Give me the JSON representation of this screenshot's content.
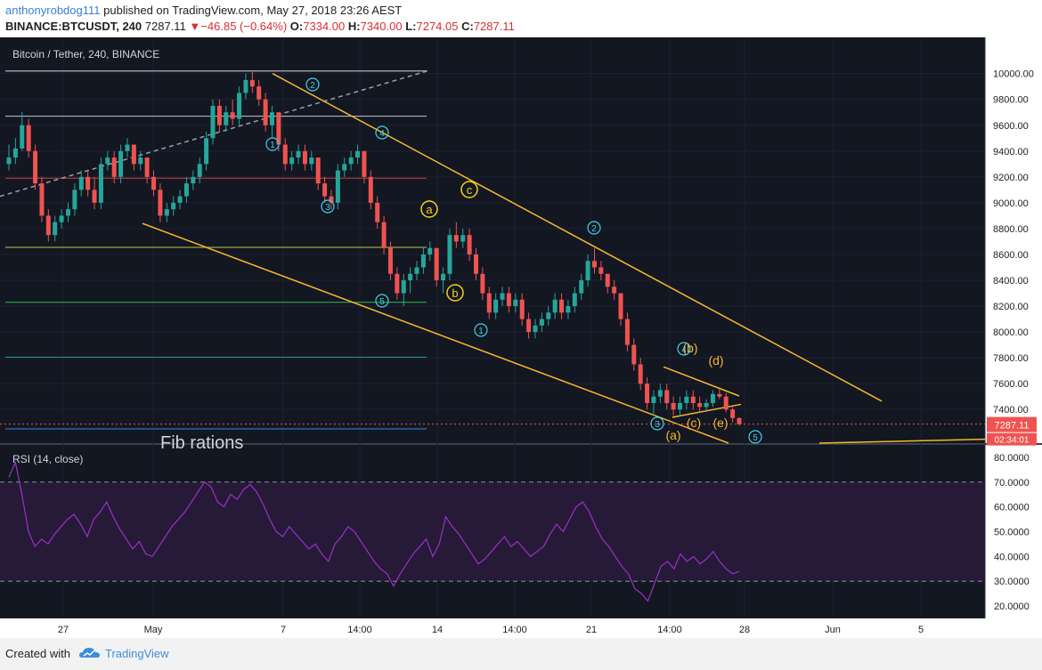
{
  "header": {
    "user": "anthonyrobdog111",
    "published": "published on TradingView.com, May 27, 2018 23:26 AEST",
    "symbol": "BINANCE:BTCUSDT, 240",
    "last": "7287.11",
    "change": "−46.85 (−0.64%)",
    "o_label": "O:",
    "o": "7334.00",
    "h_label": "H:",
    "h": "7340.00",
    "l_label": "L:",
    "l": "7274.05",
    "c_label": "C:",
    "c": "7287.11"
  },
  "footer": {
    "created_with": "Created with",
    "brand": "TradingView"
  },
  "colors": {
    "bg": "#131722",
    "up": "#26a69a",
    "down": "#ef5350",
    "trend": "#f5b82e",
    "wave": "#3fd0e8",
    "abc": "#f2d21b",
    "rsi": "#9b30c8"
  },
  "chart_data": {
    "type": "candlestick",
    "title": "Bitcoin / Tether, 240, BINANCE",
    "yticks": [
      "10000.00",
      "9800.00",
      "9600.00",
      "9400.00",
      "9200.00",
      "9000.00",
      "8800.00",
      "8600.00",
      "8400.00",
      "8200.00",
      "8000.00",
      "7800.00",
      "7600.00",
      "7400.00"
    ],
    "ylim": [
      7140,
      10280
    ],
    "price_label": "7287.11",
    "countdown_label": "02:34:01",
    "xticks": [
      "27",
      "May",
      "7",
      "14:00",
      "14",
      "14:00",
      "21",
      "14:00",
      "28",
      "Jun",
      "5"
    ],
    "annotation_text": "Fib rations",
    "horizontal_levels": [
      {
        "value": 10020,
        "color": "#b0b4bc"
      },
      {
        "value": 9670,
        "color": "#b0b4bc"
      },
      {
        "value": 9190,
        "color": "#b53a3a"
      },
      {
        "value": 8655,
        "color": "#9ea53a"
      },
      {
        "value": 8230,
        "color": "#2ea84a"
      },
      {
        "value": 7805,
        "color": "#2e8a82"
      },
      {
        "value": 7250,
        "color": "#2f6fc8"
      }
    ],
    "wave_labels": [
      "1",
      "2",
      "3",
      "4",
      "5",
      "1",
      "2",
      "3",
      "4",
      "5"
    ],
    "abc_labels": [
      "a",
      "b",
      "c"
    ],
    "triangle_labels": [
      "(a)",
      "(b)",
      "(c)",
      "(d)",
      "(e)"
    ],
    "candles": [
      [
        9300,
        9450,
        9250,
        9350
      ],
      [
        9350,
        9500,
        9300,
        9420
      ],
      [
        9420,
        9700,
        9400,
        9600
      ],
      [
        9600,
        9650,
        9350,
        9400
      ],
      [
        9400,
        9450,
        9100,
        9150
      ],
      [
        9150,
        9200,
        8850,
        8900
      ],
      [
        8900,
        8950,
        8700,
        8750
      ],
      [
        8750,
        8900,
        8700,
        8850
      ],
      [
        8850,
        8950,
        8800,
        8900
      ],
      [
        8900,
        9000,
        8850,
        8950
      ],
      [
        8950,
        9150,
        8900,
        9100
      ],
      [
        9100,
        9250,
        9050,
        9200
      ],
      [
        9200,
        9250,
        9050,
        9100
      ],
      [
        9100,
        9200,
        8950,
        9000
      ],
      [
        9000,
        9350,
        8950,
        9300
      ],
      [
        9300,
        9400,
        9250,
        9350
      ],
      [
        9350,
        9400,
        9150,
        9200
      ],
      [
        9200,
        9450,
        9150,
        9400
      ],
      [
        9400,
        9500,
        9350,
        9450
      ],
      [
        9450,
        9450,
        9250,
        9300
      ],
      [
        9300,
        9400,
        9250,
        9350
      ],
      [
        9350,
        9350,
        9150,
        9200
      ],
      [
        9200,
        9250,
        9050,
        9100
      ],
      [
        9100,
        9150,
        8850,
        8900
      ],
      [
        8900,
        9000,
        8850,
        8950
      ],
      [
        8950,
        9050,
        8900,
        9000
      ],
      [
        9000,
        9100,
        8950,
        9050
      ],
      [
        9050,
        9200,
        9000,
        9150
      ],
      [
        9150,
        9250,
        9100,
        9200
      ],
      [
        9200,
        9350,
        9150,
        9300
      ],
      [
        9300,
        9550,
        9250,
        9500
      ],
      [
        9500,
        9800,
        9450,
        9750
      ],
      [
        9750,
        9800,
        9550,
        9600
      ],
      [
        9600,
        9750,
        9550,
        9700
      ],
      [
        9700,
        9800,
        9600,
        9650
      ],
      [
        9650,
        9900,
        9600,
        9850
      ],
      [
        9850,
        10000,
        9800,
        9950
      ],
      [
        9950,
        10020,
        9850,
        9900
      ],
      [
        9900,
        9950,
        9750,
        9800
      ],
      [
        9800,
        9850,
        9550,
        9600
      ],
      [
        9600,
        9750,
        9500,
        9700
      ],
      [
        9700,
        9700,
        9400,
        9450
      ],
      [
        9450,
        9500,
        9250,
        9300
      ],
      [
        9300,
        9400,
        9250,
        9350
      ],
      [
        9350,
        9450,
        9300,
        9400
      ],
      [
        9400,
        9450,
        9250,
        9300
      ],
      [
        9300,
        9400,
        9250,
        9350
      ],
      [
        9350,
        9350,
        9100,
        9150
      ],
      [
        9150,
        9200,
        9000,
        9050
      ],
      [
        9050,
        9100,
        8950,
        9000
      ],
      [
        9000,
        9300,
        8950,
        9250
      ],
      [
        9250,
        9350,
        9200,
        9300
      ],
      [
        9300,
        9400,
        9250,
        9350
      ],
      [
        9350,
        9450,
        9300,
        9400
      ],
      [
        9400,
        9400,
        9150,
        9200
      ],
      [
        9200,
        9250,
        8950,
        9000
      ],
      [
        9000,
        9050,
        8800,
        8850
      ],
      [
        8850,
        8900,
        8600,
        8650
      ],
      [
        8650,
        8700,
        8400,
        8450
      ],
      [
        8450,
        8500,
        8250,
        8300
      ],
      [
        8300,
        8450,
        8200,
        8400
      ],
      [
        8400,
        8500,
        8300,
        8450
      ],
      [
        8450,
        8550,
        8400,
        8500
      ],
      [
        8500,
        8650,
        8450,
        8600
      ],
      [
        8600,
        8700,
        8550,
        8650
      ],
      [
        8650,
        8650,
        8350,
        8400
      ],
      [
        8400,
        8500,
        8300,
        8450
      ],
      [
        8450,
        8800,
        8400,
        8750
      ],
      [
        8750,
        8850,
        8650,
        8700
      ],
      [
        8700,
        8800,
        8650,
        8750
      ],
      [
        8750,
        8800,
        8550,
        8600
      ],
      [
        8600,
        8650,
        8400,
        8450
      ],
      [
        8450,
        8500,
        8250,
        8300
      ],
      [
        8300,
        8350,
        8100,
        8150
      ],
      [
        8150,
        8300,
        8100,
        8250
      ],
      [
        8250,
        8350,
        8200,
        8300
      ],
      [
        8300,
        8350,
        8150,
        8200
      ],
      [
        8200,
        8300,
        8150,
        8250
      ],
      [
        8250,
        8300,
        8050,
        8100
      ],
      [
        8100,
        8150,
        7950,
        8000
      ],
      [
        8000,
        8100,
        7950,
        8050
      ],
      [
        8050,
        8150,
        8000,
        8100
      ],
      [
        8100,
        8200,
        8050,
        8150
      ],
      [
        8150,
        8300,
        8100,
        8250
      ],
      [
        8250,
        8300,
        8100,
        8150
      ],
      [
        8150,
        8250,
        8100,
        8200
      ],
      [
        8200,
        8350,
        8150,
        8300
      ],
      [
        8300,
        8450,
        8250,
        8400
      ],
      [
        8400,
        8600,
        8350,
        8550
      ],
      [
        8550,
        8650,
        8450,
        8500
      ],
      [
        8500,
        8550,
        8400,
        8450
      ],
      [
        8450,
        8450,
        8300,
        8350
      ],
      [
        8350,
        8400,
        8250,
        8300
      ],
      [
        8300,
        8300,
        8050,
        8100
      ],
      [
        8100,
        8150,
        7850,
        7900
      ],
      [
        7900,
        7950,
        7700,
        7750
      ],
      [
        7750,
        7800,
        7550,
        7600
      ],
      [
        7600,
        7650,
        7400,
        7450
      ],
      [
        7450,
        7550,
        7350,
        7500
      ],
      [
        7500,
        7600,
        7450,
        7550
      ],
      [
        7550,
        7600,
        7400,
        7450
      ],
      [
        7450,
        7500,
        7350,
        7400
      ],
      [
        7400,
        7500,
        7350,
        7450
      ],
      [
        7450,
        7550,
        7400,
        7500
      ],
      [
        7500,
        7550,
        7400,
        7450
      ],
      [
        7450,
        7500,
        7380,
        7420
      ],
      [
        7420,
        7480,
        7380,
        7450
      ],
      [
        7450,
        7550,
        7420,
        7520
      ],
      [
        7520,
        7560,
        7480,
        7500
      ],
      [
        7500,
        7530,
        7380,
        7400
      ],
      [
        7400,
        7420,
        7300,
        7334
      ],
      [
        7334,
        7340,
        7274,
        7287
      ]
    ],
    "rsi": {
      "label": "RSI (14, close)",
      "yticks": [
        "80.0000",
        "70.0000",
        "60.0000",
        "50.0000",
        "40.0000",
        "30.0000",
        "20.0000"
      ],
      "ylim": [
        15,
        85
      ],
      "upper": 70,
      "lower": 30,
      "values": [
        72,
        78,
        65,
        50,
        44,
        47,
        45,
        49,
        52,
        55,
        57,
        53,
        48,
        55,
        58,
        62,
        56,
        51,
        47,
        43,
        46,
        41,
        40,
        44,
        48,
        52,
        55,
        58,
        62,
        66,
        70,
        68,
        62,
        60,
        65,
        63,
        67,
        69,
        66,
        61,
        55,
        50,
        48,
        52,
        49,
        46,
        43,
        45,
        41,
        38,
        45,
        48,
        52,
        50,
        46,
        42,
        38,
        35,
        33,
        28,
        33,
        37,
        41,
        44,
        47,
        40,
        45,
        56,
        52,
        49,
        45,
        41,
        37,
        39,
        42,
        45,
        48,
        44,
        46,
        43,
        40,
        42,
        44,
        49,
        53,
        50,
        55,
        60,
        62,
        58,
        52,
        47,
        44,
        40,
        36,
        33,
        27,
        25,
        22,
        29,
        36,
        38,
        35,
        41,
        38,
        40,
        37,
        39,
        42,
        38,
        35,
        33,
        34
      ]
    }
  }
}
